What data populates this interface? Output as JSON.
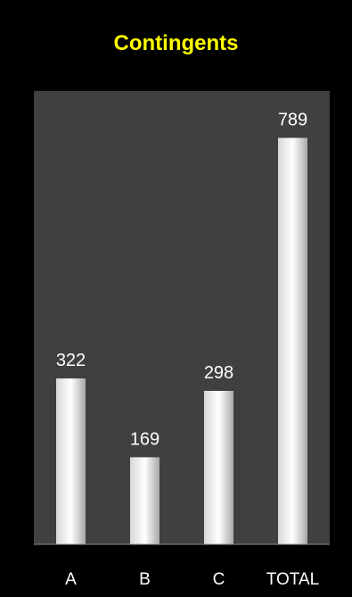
{
  "chart_data": {
    "type": "bar",
    "title": "Contingents",
    "categories": [
      "A",
      "B",
      "C",
      "TOTAL"
    ],
    "values": [
      322,
      169,
      298,
      789
    ],
    "ylim": [
      0,
      880
    ],
    "grid": false,
    "legend": "none",
    "xlabel": "",
    "ylabel": ""
  },
  "colors": {
    "background": "#000000",
    "plot_area": "#404040",
    "title": "#ffff00",
    "text": "#ffffff",
    "bar_light": "#ffffff",
    "bar_dark": "#a8a8a8"
  }
}
